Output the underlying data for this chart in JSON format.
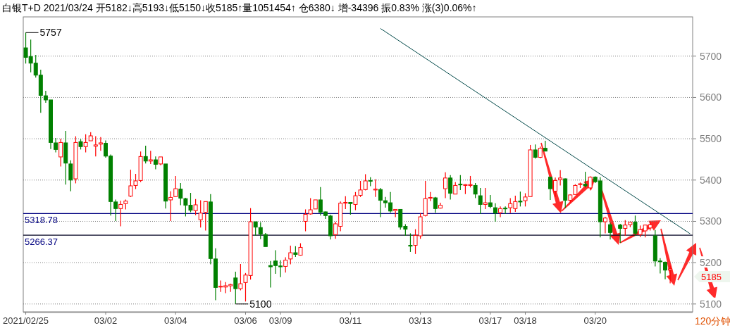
{
  "chart_data": {
    "type": "candlestick",
    "title": "白银T+D 2021/03/24 开5182↓高5193↓低5150↓收5185↑量1051454↑ 仓6380↓ 增-34396 振0.83% 涨(3)0.06%↑",
    "categories": [
      "2021/02/25",
      null,
      null,
      null,
      null,
      null,
      null,
      null,
      null,
      null,
      null,
      null,
      null,
      null,
      null,
      null,
      "03/02",
      null,
      null,
      null,
      null,
      null,
      null,
      null,
      null,
      null,
      null,
      null,
      null,
      null,
      "03/04",
      null,
      null,
      null,
      null,
      null,
      null,
      null,
      null,
      null,
      null,
      null,
      null,
      null,
      "03/06",
      null,
      null,
      null,
      null,
      null,
      null,
      "03/09",
      null,
      null,
      null,
      null,
      null,
      null,
      null,
      null,
      null,
      null,
      null,
      null,
      null,
      "03/11",
      null,
      null,
      null,
      null,
      null,
      null,
      null,
      null,
      null,
      null,
      null,
      null,
      null,
      "03/13",
      null,
      null,
      null,
      null,
      null,
      null,
      null,
      null,
      null,
      null,
      null,
      null,
      null,
      "03/17",
      null,
      null,
      null,
      null,
      null,
      null,
      "03/18",
      null,
      null,
      null,
      null,
      null,
      null,
      null,
      null,
      null,
      null,
      null,
      null,
      null,
      "03/20",
      null,
      null,
      null,
      null,
      null,
      null,
      null,
      null,
      null,
      null,
      null,
      null,
      null,
      null,
      null,
      null,
      null,
      null,
      null
    ],
    "ohlc": [
      [
        5720,
        5757,
        5682,
        5697
      ],
      [
        5699,
        5740,
        5661,
        5683
      ],
      [
        5683,
        5703,
        5648,
        5654
      ],
      [
        5654,
        5667,
        5563,
        5605
      ],
      [
        5604,
        5616,
        5587,
        5594
      ],
      [
        5594,
        5594,
        5475,
        5491
      ],
      [
        5490,
        5502,
        5467,
        5474
      ],
      [
        5456,
        5500,
        5433,
        5491
      ],
      [
        5490,
        5519,
        5389,
        5441
      ],
      [
        5439,
        5448,
        5373,
        5400
      ],
      [
        5403,
        5506,
        5392,
        5491
      ],
      [
        5493,
        5499,
        5474,
        5481
      ],
      [
        5481,
        5511,
        5467,
        5491
      ],
      [
        5495,
        5516,
        5495,
        5507
      ],
      [
        5482,
        5506,
        5457,
        5485
      ],
      [
        5487,
        5504,
        5471,
        5490
      ],
      [
        5489,
        5496,
        5454,
        5458
      ],
      [
        5458,
        5462,
        5314,
        5348
      ],
      [
        5347,
        5353,
        5301,
        5331
      ],
      [
        5331,
        5350,
        5288,
        5341
      ],
      [
        5343,
        5353,
        5329,
        5349
      ],
      [
        5361,
        5425,
        5359,
        5386
      ],
      [
        5387,
        5415,
        5378,
        5398
      ],
      [
        5399,
        5469,
        5395,
        5457
      ],
      [
        5457,
        5483,
        5440,
        5446
      ],
      [
        5446,
        5471,
        5439,
        5449
      ],
      [
        5449,
        5457,
        5426,
        5438
      ],
      [
        5439,
        5456,
        5436,
        5456
      ],
      [
        5439,
        5439,
        5331,
        5349
      ],
      [
        5352,
        5373,
        5301,
        5358
      ],
      [
        5360,
        5410,
        5359,
        5379
      ],
      [
        5378,
        5393,
        5339,
        5356
      ],
      [
        5355,
        5357,
        5312,
        5339
      ],
      [
        5339,
        5369,
        5322,
        5327
      ],
      [
        5326,
        5354,
        5315,
        5340
      ],
      [
        5304,
        5351,
        5285,
        5320
      ],
      [
        5322,
        5348,
        5278,
        5348
      ],
      [
        5347,
        5366,
        5196,
        5210
      ],
      [
        5209,
        5235,
        5109,
        5140
      ],
      [
        5141,
        5157,
        5129,
        5143
      ],
      [
        5141,
        5153,
        5126,
        5144
      ],
      [
        5144,
        5149,
        5129,
        5147
      ],
      [
        5163,
        5178,
        5100,
        5137
      ],
      [
        5137,
        5197,
        5133,
        5149
      ],
      [
        5152,
        5175,
        5106,
        5170
      ],
      [
        5169,
        5332,
        5159,
        5299
      ],
      [
        5299,
        5299,
        5265,
        5286
      ],
      [
        5285,
        5298,
        5257,
        5269
      ],
      [
        5268,
        5272,
        5239,
        5239
      ],
      [
        5193,
        5204,
        5140,
        5190
      ],
      [
        5204,
        5230,
        5173,
        5193
      ],
      [
        5192,
        5206,
        5165,
        5190
      ],
      [
        5191,
        5213,
        5176,
        5206
      ],
      [
        5209,
        5241,
        5196,
        5224
      ],
      [
        5224,
        5240,
        5214,
        5220
      ],
      [
        5218,
        5247,
        5217,
        5237
      ],
      [
        5300,
        5329,
        5276,
        5317
      ],
      [
        5318,
        5356,
        5316,
        5328
      ],
      [
        5330,
        5352,
        5330,
        5352
      ],
      [
        5352,
        5383,
        5314,
        5322
      ],
      [
        5323,
        5324,
        5306,
        5314
      ],
      [
        5313,
        5316,
        5256,
        5265
      ],
      [
        5268,
        5299,
        5258,
        5294
      ],
      [
        5288,
        5348,
        5276,
        5344
      ],
      [
        5344,
        5361,
        5330,
        5346
      ],
      [
        5346,
        5346,
        5316,
        5343
      ],
      [
        5341,
        5371,
        5327,
        5362
      ],
      [
        5363,
        5398,
        5359,
        5376
      ],
      [
        5377,
        5414,
        5375,
        5398
      ],
      [
        5399,
        5407,
        5385,
        5397
      ],
      [
        5376,
        5402,
        5359,
        5378
      ],
      [
        5377,
        5381,
        5310,
        5351
      ],
      [
        5350,
        5359,
        5333,
        5345
      ],
      [
        5345,
        5371,
        5321,
        5325
      ],
      [
        5326,
        5329,
        5310,
        5329
      ],
      [
        5329,
        5329,
        5280,
        5286
      ],
      [
        5288,
        5293,
        5265,
        5281
      ],
      [
        5242,
        5271,
        5226,
        5240
      ],
      [
        5242,
        5281,
        5221,
        5266
      ],
      [
        5265,
        5320,
        5258,
        5311
      ],
      [
        5314,
        5398,
        5312,
        5355
      ],
      [
        5356,
        5371,
        5349,
        5358
      ],
      [
        5357,
        5359,
        5321,
        5331
      ],
      [
        5332,
        5345,
        5331,
        5339
      ],
      [
        5379,
        5419,
        5356,
        5405
      ],
      [
        5405,
        5412,
        5353,
        5368
      ],
      [
        5366,
        5395,
        5366,
        5387
      ],
      [
        5390,
        5412,
        5376,
        5389
      ],
      [
        5387,
        5390,
        5366,
        5389
      ],
      [
        5387,
        5410,
        5382,
        5389
      ],
      [
        5387,
        5393,
        5356,
        5366
      ],
      [
        5362,
        5381,
        5318,
        5341
      ],
      [
        5341,
        5381,
        5330,
        5345
      ],
      [
        5345,
        5364,
        5332,
        5336
      ],
      [
        5333,
        5344,
        5299,
        5320
      ],
      [
        5321,
        5336,
        5310,
        5331
      ],
      [
        5332,
        5336,
        5318,
        5331
      ],
      [
        5333,
        5356,
        5320,
        5343
      ],
      [
        5331,
        5362,
        5323,
        5348
      ],
      [
        5349,
        5372,
        5336,
        5347
      ],
      [
        5350,
        5368,
        5336,
        5359
      ],
      [
        5360,
        5485,
        5360,
        5473
      ],
      [
        5473,
        5486,
        5452,
        5455
      ],
      [
        5455,
        5481,
        5453,
        5477
      ],
      [
        5477,
        5495,
        5470,
        5470
      ],
      [
        5407,
        5407,
        5352,
        5379
      ],
      [
        5373,
        5406,
        5359,
        5399
      ],
      [
        5401,
        5424,
        5387,
        5405
      ],
      [
        5403,
        5404,
        5332,
        5351
      ],
      [
        5351,
        5365,
        5345,
        5364
      ],
      [
        5365,
        5390,
        5365,
        5387
      ],
      [
        5389,
        5394,
        5381,
        5391
      ],
      [
        5390,
        5420,
        5382,
        5386
      ],
      [
        5381,
        5409,
        5375,
        5407
      ],
      [
        5407,
        5409,
        5393,
        5396
      ],
      [
        5398,
        5407,
        5261,
        5299
      ],
      [
        5299,
        5311,
        5271,
        5308
      ],
      [
        5292,
        5297,
        5256,
        5273
      ],
      null,
      [
        5291,
        5294,
        5248,
        5283
      ],
      [
        5283,
        5303,
        5265,
        5291
      ],
      [
        5292,
        5299,
        5286,
        5298
      ],
      [
        5298,
        5314,
        5265,
        5271
      ],
      [
        5268,
        5290,
        5262,
        5280
      ],
      [
        5277,
        5292,
        5261,
        5291
      ],
      [
        5284,
        5298,
        5278,
        5292
      ],
      [
        5265,
        5279,
        5191,
        5204
      ],
      [
        5204,
        5211,
        5174,
        5203
      ],
      [
        5201,
        5203,
        5160,
        5182
      ],
      [
        5182,
        5193,
        5150,
        5185
      ],
      null,
      null,
      null,
      null
    ],
    "colors": [
      "#008000",
      "#008000",
      "#008000",
      "#008000",
      "#008000",
      "#008000",
      "#008000",
      "#ff0000",
      "#008000",
      "#008000",
      "#ff0000",
      "#008000",
      "#ff0000",
      "#ff0000",
      "#ff0000",
      "#ff0000",
      "#008000",
      "#008000",
      "#008000",
      "#ff0000",
      "#ff0000",
      "#ff0000",
      "#ff0000",
      "#ff0000",
      "#008000",
      "#ff0000",
      "#008000",
      "#ff0000",
      "#008000",
      "#ff0000",
      "#ff0000",
      "#008000",
      "#008000",
      "#008000",
      "#ff0000",
      "#ff0000",
      "#ff0000",
      "#008000",
      "#008000",
      "#ff0000",
      "#ff0000",
      "#ff0000",
      "#008000",
      "#ff0000",
      "#ff0000",
      "#ff0000",
      "#008000",
      "#008000",
      "#008000",
      "#008000",
      "#008000",
      "#008000",
      "#ff0000",
      "#ff0000",
      "#008000",
      "#ff0000",
      "#ff0000",
      "#ff0000",
      "#ff0000",
      "#008000",
      "#008000",
      "#008000",
      "#ff0000",
      "#ff0000",
      "#ff0000",
      "#008000",
      "#ff0000",
      "#ff0000",
      "#ff0000",
      "#008000",
      "#ff0000",
      "#008000",
      "#008000",
      "#008000",
      "#ff0000",
      "#008000",
      "#008000",
      "#008000",
      "#ff0000",
      "#ff0000",
      "#ff0000",
      "#ff0000",
      "#008000",
      "#ff0000",
      "#ff0000",
      "#008000",
      "#ff0000",
      "#008000",
      "#ff0000",
      "#ff0000",
      "#008000",
      "#008000",
      "#ff0000",
      "#008000",
      "#008000",
      "#ff0000",
      "#008000",
      "#ff0000",
      "#ff0000",
      "#008000",
      "#ff0000",
      "#ff0000",
      "#008000",
      "#ff0000",
      "#008000",
      "#008000",
      "#ff0000",
      "#ff0000",
      "#008000",
      "#ff0000",
      "#ff0000",
      "#ff0000",
      "#008000",
      "#ff0000",
      "#008000",
      "#008000",
      "#ff0000",
      "#008000",
      null,
      "#008000",
      "#ff0000",
      "#ff0000",
      "#008000",
      "#ff0000",
      "#ff0000",
      "#ff0000",
      "#008000",
      "#008000",
      "#008000",
      "#ff0000",
      null,
      null,
      null,
      null
    ],
    "series": [
      {
        "type": "line",
        "color": "#004848",
        "values": [
          null,
          null,
          null,
          null,
          null,
          null,
          null,
          null,
          null,
          null,
          null,
          null,
          null,
          null,
          null,
          null,
          null,
          null,
          null,
          null,
          null,
          null,
          null,
          null,
          null,
          null,
          null,
          null,
          null,
          null,
          null,
          null,
          null,
          null,
          null,
          null,
          null,
          null,
          null,
          null,
          null,
          null,
          null,
          null,
          null,
          null,
          null,
          null,
          null,
          null,
          null,
          null,
          null,
          null,
          null,
          null,
          null,
          null,
          null,
          null,
          null,
          null,
          null,
          null,
          null,
          null,
          null,
          null,
          null,
          null,
          null,
          5767,
          null,
          null,
          null,
          null,
          null,
          null,
          null,
          null,
          null,
          null,
          null,
          null,
          null,
          null,
          null,
          null,
          null,
          null,
          null,
          null,
          null,
          null,
          null,
          null,
          null,
          null,
          null,
          null,
          null,
          null,
          null,
          null,
          null,
          null,
          null,
          null,
          null,
          null,
          null,
          null,
          null,
          null,
          null,
          null,
          null,
          null,
          null,
          null,
          null,
          null,
          null,
          null,
          null,
          null,
          null,
          null,
          null,
          null,
          null,
          null,
          null,
          5270
        ]
      }
    ],
    "ylim": [
      5081,
      5795
    ],
    "yticks": [
      5100,
      5200,
      5300,
      5400,
      5500,
      5600,
      5700
    ],
    "grid": "y",
    "ref_lines": [
      {
        "axis": "y",
        "value": 5318.78,
        "label": "5318.78",
        "color": "#000080"
      },
      {
        "axis": "y",
        "value": 5266.37,
        "label": "5266.37",
        "color": "#000020"
      }
    ],
    "annotations": [
      "5757",
      "5100",
      "5185",
      "120分钟"
    ]
  }
}
